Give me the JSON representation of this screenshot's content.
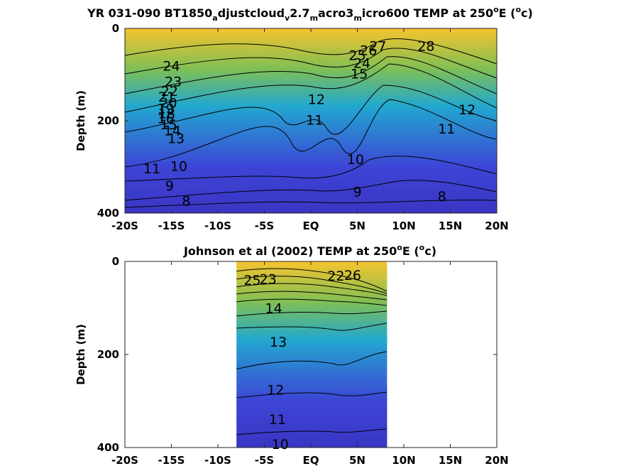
{
  "colors": {
    "warm": "#f6c42e",
    "mid": "#22a8cf",
    "cool": "#3d45d6",
    "deep": "#3a35c4",
    "axes_bg": "#ffffff",
    "axis": "#262626"
  },
  "chart_data": [
    {
      "type": "contour",
      "title": {
        "parts": [
          {
            "t": "YR 031-090 BT1850"
          },
          {
            "t": "a",
            "sub": true
          },
          {
            "t": "djustcloud"
          },
          {
            "t": "v",
            "sub": true
          },
          {
            "t": "2.7"
          },
          {
            "t": "m",
            "sub": true
          },
          {
            "t": "acro3"
          },
          {
            "t": "m",
            "sub": true
          },
          {
            "t": "icro600 TEMP at 250"
          },
          {
            "t": "o",
            "sup": true
          },
          {
            "t": "E ("
          },
          {
            "t": "o",
            "sup": true
          },
          {
            "t": "c)"
          }
        ]
      },
      "ylabel": "Depth (m)",
      "xlim": [
        -20,
        20
      ],
      "ylim": [
        0,
        400
      ],
      "y_reversed": true,
      "data_xrange": [
        -20,
        20
      ],
      "xticks": [
        -20,
        -15,
        -10,
        -5,
        0,
        5,
        10,
        15,
        20
      ],
      "xticklabels": [
        "-20S",
        "-15S",
        "-10S",
        "-5S",
        "EQ",
        "5N",
        "10N",
        "15N",
        "20N"
      ],
      "yticks": [
        0,
        200,
        400
      ],
      "yticklabels": [
        "0",
        "200",
        "400"
      ],
      "contour_labels": [
        {
          "text": "28",
          "x": 12.4,
          "y": 40
        },
        {
          "text": "27",
          "x": 7.2,
          "y": 40
        },
        {
          "text": "26",
          "x": 6.2,
          "y": 49
        },
        {
          "text": "25",
          "x": 5.0,
          "y": 60
        },
        {
          "text": "24",
          "x": 5.5,
          "y": 77
        },
        {
          "text": "24",
          "x": -15.0,
          "y": 83
        },
        {
          "text": "23",
          "x": -14.8,
          "y": 117
        },
        {
          "text": "22",
          "x": -15.2,
          "y": 138
        },
        {
          "text": "21",
          "x": -15.5,
          "y": 150
        },
        {
          "text": "20",
          "x": -15.3,
          "y": 163
        },
        {
          "text": "19",
          "x": -15.6,
          "y": 175
        },
        {
          "text": "18",
          "x": -15.5,
          "y": 186
        },
        {
          "text": "16",
          "x": -15.6,
          "y": 197
        },
        {
          "text": "15",
          "x": -15.3,
          "y": 210
        },
        {
          "text": "14",
          "x": -14.9,
          "y": 223
        },
        {
          "text": "13",
          "x": -14.5,
          "y": 240
        },
        {
          "text": "15",
          "x": 5.2,
          "y": 100
        },
        {
          "text": "12",
          "x": 0.6,
          "y": 155
        },
        {
          "text": "11",
          "x": 0.4,
          "y": 200
        },
        {
          "text": "10",
          "x": 4.8,
          "y": 285
        },
        {
          "text": "12",
          "x": 16.8,
          "y": 178
        },
        {
          "text": "11",
          "x": 14.6,
          "y": 219
        },
        {
          "text": "11",
          "x": -17.1,
          "y": 305
        },
        {
          "text": "10",
          "x": -14.2,
          "y": 300
        },
        {
          "text": "9",
          "x": -15.2,
          "y": 342
        },
        {
          "text": "9",
          "x": 5.0,
          "y": 355
        },
        {
          "text": "8",
          "x": -13.4,
          "y": 375
        },
        {
          "text": "8",
          "x": 14.1,
          "y": 365
        }
      ]
    },
    {
      "type": "contour",
      "title": {
        "parts": [
          {
            "t": "Johnson et al (2002) TEMP at 250"
          },
          {
            "t": "o",
            "sup": true
          },
          {
            "t": "E ("
          },
          {
            "t": "o",
            "sup": true
          },
          {
            "t": "c)"
          }
        ]
      },
      "ylabel": "Depth (m)",
      "xlim": [
        -20,
        20
      ],
      "ylim": [
        0,
        400
      ],
      "y_reversed": true,
      "data_xrange": [
        -8,
        8.2
      ],
      "xticks": [
        -20,
        -15,
        -10,
        -5,
        0,
        5,
        10,
        15,
        20
      ],
      "xticklabels": [
        "-20S",
        "-15S",
        "-10S",
        "-5S",
        "EQ",
        "5N",
        "10N",
        "15N",
        "20N"
      ],
      "yticks": [
        0,
        200,
        400
      ],
      "yticklabels": [
        "0",
        "200",
        "400"
      ],
      "contour_labels": [
        {
          "text": "25",
          "x": -6.3,
          "y": 42
        },
        {
          "text": "23",
          "x": -4.6,
          "y": 40
        },
        {
          "text": "22",
          "x": 2.7,
          "y": 33
        },
        {
          "text": "26",
          "x": 4.5,
          "y": 31
        },
        {
          "text": "14",
          "x": -4.0,
          "y": 102
        },
        {
          "text": "13",
          "x": -3.5,
          "y": 175
        },
        {
          "text": "12",
          "x": -3.8,
          "y": 278
        },
        {
          "text": "11",
          "x": -3.6,
          "y": 341
        },
        {
          "text": "10",
          "x": -3.3,
          "y": 395
        }
      ]
    }
  ]
}
